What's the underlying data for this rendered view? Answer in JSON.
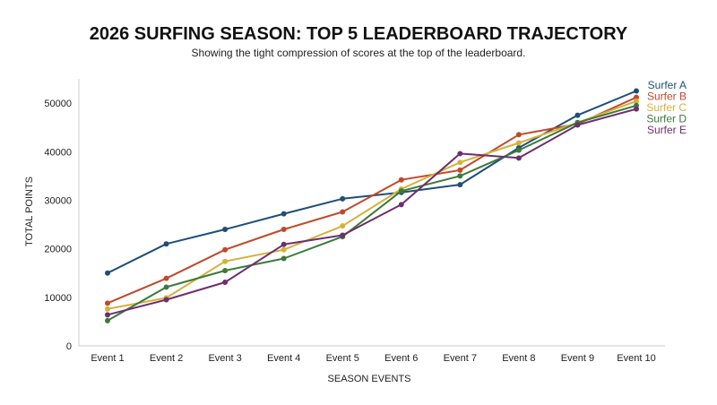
{
  "chart_data": {
    "type": "line",
    "title": "2026 SURFING SEASON: TOP 5 LEADERBOARD TRAJECTORY",
    "subtitle": "Showing the tight compression of scores at the top of the leaderboard.",
    "xlabel": "SEASON EVENTS",
    "ylabel": "TOTAL POINTS",
    "categories": [
      "Event 1",
      "Event 2",
      "Event 3",
      "Event 4",
      "Event 5",
      "Event 6",
      "Event 7",
      "Event 8",
      "Event 9",
      "Event 10"
    ],
    "ylim": [
      0,
      55000
    ],
    "yticks": [
      0,
      10000,
      20000,
      30000,
      40000,
      50000
    ],
    "grid": false,
    "legend_position": "top-right",
    "series": [
      {
        "name": "Surfer A",
        "color": "#1f4e79",
        "values": [
          15000,
          21000,
          24000,
          27200,
          30300,
          31600,
          33200,
          40800,
          47500,
          52500
        ]
      },
      {
        "name": "Surfer B",
        "color": "#c0492b",
        "values": [
          8800,
          13900,
          19800,
          24000,
          27600,
          34200,
          36200,
          43500,
          45700,
          51200
        ]
      },
      {
        "name": "Surfer C",
        "color": "#d4b13a",
        "values": [
          7600,
          9900,
          17400,
          19800,
          24700,
          32300,
          37800,
          41800,
          46000,
          50400
        ]
      },
      {
        "name": "Surfer D",
        "color": "#3b7a3a",
        "values": [
          5200,
          12100,
          15500,
          18000,
          22500,
          31900,
          35000,
          40300,
          46000,
          49500
        ]
      },
      {
        "name": "Surfer E",
        "color": "#6d2f6f",
        "values": [
          6400,
          9500,
          13100,
          20900,
          22800,
          29100,
          39600,
          38700,
          45500,
          48800
        ]
      }
    ]
  }
}
